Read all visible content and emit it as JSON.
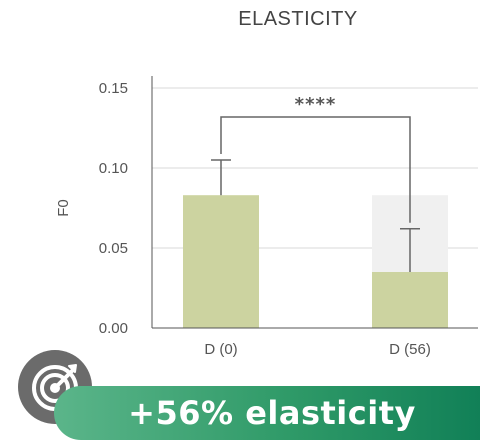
{
  "chart_data": {
    "type": "bar",
    "title": "ELASTICITY",
    "ylabel": "F0",
    "xlabel": "",
    "ylim": [
      0,
      0.15
    ],
    "yticks": [
      "0.00",
      "0.05",
      "0.10",
      "0.15"
    ],
    "yticks_values": [
      0,
      0.05,
      0.1,
      0.15
    ],
    "categories": [
      "D (0)",
      "D (56)"
    ],
    "values": [
      0.083,
      0.035
    ],
    "error": [
      0.022,
      0.027
    ],
    "reference_values": [
      null,
      0.083
    ],
    "significance": {
      "between": [
        "D (0)",
        "D (56)"
      ],
      "label": "****"
    },
    "grid": true,
    "colors": {
      "bar": "#ccd3a0",
      "reference": "#f0f0f0",
      "error": "#666666",
      "grid": "#d9d9d9"
    }
  },
  "banner": {
    "text": "+56% elasticity",
    "icon": "target-icon"
  }
}
